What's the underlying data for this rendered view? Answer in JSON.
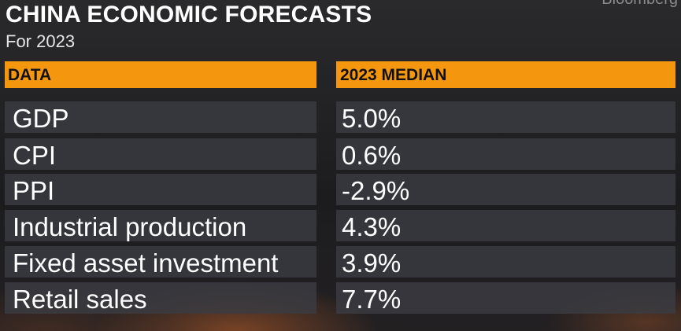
{
  "header": {
    "title": "CHINA ECONOMIC FORECASTS",
    "subtitle": "For 2023",
    "brand": "Bloomberg"
  },
  "table": {
    "columns": [
      "DATA",
      "2023 MEDIAN"
    ],
    "rows": [
      {
        "label": "GDP",
        "value": "5.0%"
      },
      {
        "label": "CPI",
        "value": "0.6%"
      },
      {
        "label": "PPI",
        "value": "-2.9%"
      },
      {
        "label": "Industrial production",
        "value": "4.3%"
      },
      {
        "label": "Fixed asset investment",
        "value": "3.9%"
      },
      {
        "label": "Retail sales",
        "value": "7.7%"
      }
    ]
  },
  "colors": {
    "header_fill": "#f5960f",
    "row_fill": "#3a3c42",
    "background": "#1a1a1c",
    "text": "#ffffff"
  }
}
